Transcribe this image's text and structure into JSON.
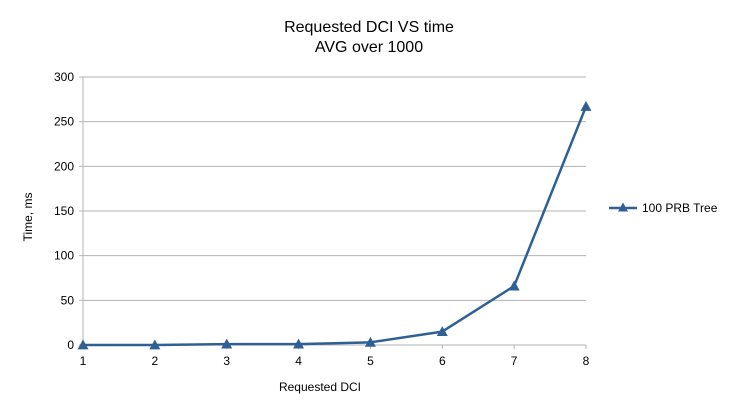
{
  "chart_data": {
    "type": "line",
    "title": "Requested DCI VS time",
    "subtitle": "AVG over 1000",
    "xlabel": "Requested DCI",
    "ylabel": "Time, ms",
    "categories": [
      "1",
      "2",
      "3",
      "4",
      "5",
      "6",
      "7",
      "8"
    ],
    "ylim": [
      0,
      300
    ],
    "yticks": [
      "0",
      "50",
      "100",
      "150",
      "200",
      "250",
      "300"
    ],
    "grid": "horizontal",
    "legend_position": "right",
    "series": [
      {
        "name": "100 PRB Tree",
        "color": "#2e5f95",
        "marker": "triangle",
        "values": [
          0,
          0,
          1,
          1,
          3,
          15,
          66,
          267
        ]
      }
    ]
  }
}
